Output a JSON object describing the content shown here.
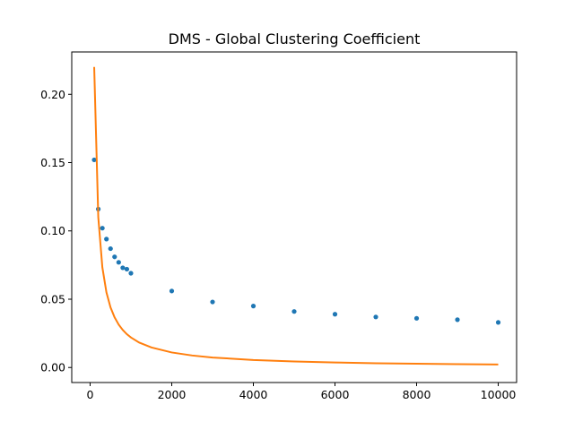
{
  "chart_data": {
    "type": "scatter",
    "title": "DMS - Global Clustering Coefficient",
    "xlabel": "",
    "ylabel": "",
    "xlim": [
      -450,
      10450
    ],
    "ylim": [
      -0.011,
      0.231
    ],
    "xticks": [
      0,
      2000,
      4000,
      6000,
      8000,
      10000
    ],
    "xtick_labels": [
      "0",
      "2000",
      "4000",
      "6000",
      "8000",
      "10000"
    ],
    "yticks": [
      0.0,
      0.05,
      0.1,
      0.15,
      0.2
    ],
    "ytick_labels": [
      "0.00",
      "0.05",
      "0.10",
      "0.15",
      "0.20"
    ],
    "grid": false,
    "series": [
      {
        "kind": "scatter",
        "color": "#1f77b4",
        "x": [
          100,
          200,
          300,
          400,
          500,
          600,
          700,
          800,
          900,
          1000,
          2000,
          3000,
          4000,
          5000,
          6000,
          7000,
          8000,
          9000,
          10000
        ],
        "y": [
          0.152,
          0.116,
          0.102,
          0.094,
          0.087,
          0.081,
          0.077,
          0.073,
          0.072,
          0.069,
          0.056,
          0.048,
          0.045,
          0.041,
          0.039,
          0.037,
          0.036,
          0.035,
          0.033
        ]
      },
      {
        "kind": "line",
        "color": "#ff7f0e",
        "x": [
          100,
          200,
          300,
          400,
          500,
          600,
          700,
          800,
          900,
          1000,
          1200,
          1500,
          2000,
          2500,
          3000,
          4000,
          5000,
          6000,
          7000,
          8000,
          9000,
          10000
        ],
        "y": [
          0.22,
          0.11,
          0.0733,
          0.055,
          0.044,
          0.0367,
          0.0314,
          0.0275,
          0.0244,
          0.022,
          0.0183,
          0.0147,
          0.011,
          0.0088,
          0.0073,
          0.0055,
          0.0044,
          0.0037,
          0.0031,
          0.00275,
          0.00244,
          0.0022
        ]
      }
    ]
  }
}
